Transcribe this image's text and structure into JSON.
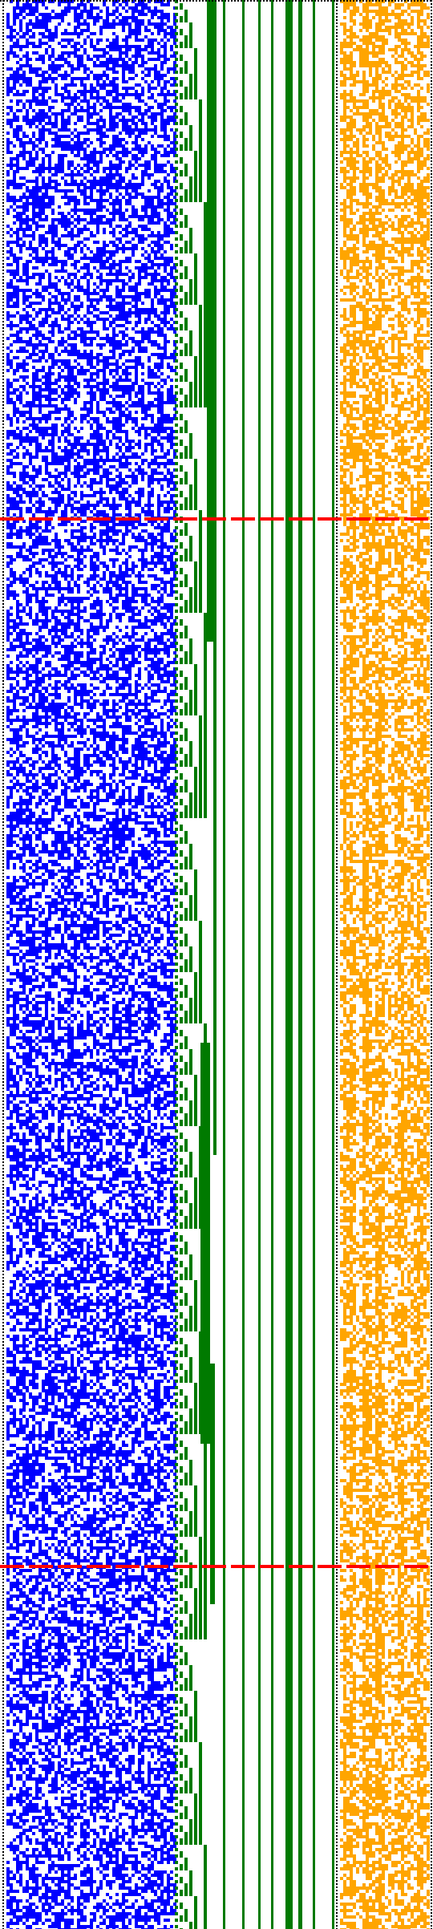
{
  "colors": {
    "background": "#ffffff",
    "random_bits": "#0000ff",
    "counter_pattern": "#007a00",
    "secondary_bits": "#ffa500",
    "marker_lines": "#ff0000",
    "dotted_borders": "#000000"
  },
  "panels": [
    {
      "name": "random-bit-panel",
      "color": "#0000ff",
      "style": "random-noise"
    },
    {
      "name": "binary-counter-panel",
      "color": "#007a00",
      "style": "staircase-counter"
    },
    {
      "name": "secondary-bit-panel",
      "color": "#ffa500",
      "style": "sparse-noise"
    }
  ],
  "markers": {
    "count": 2,
    "style": "dashed-horizontal"
  },
  "borders": {
    "style": "dotted-vertical",
    "count": 3
  }
}
